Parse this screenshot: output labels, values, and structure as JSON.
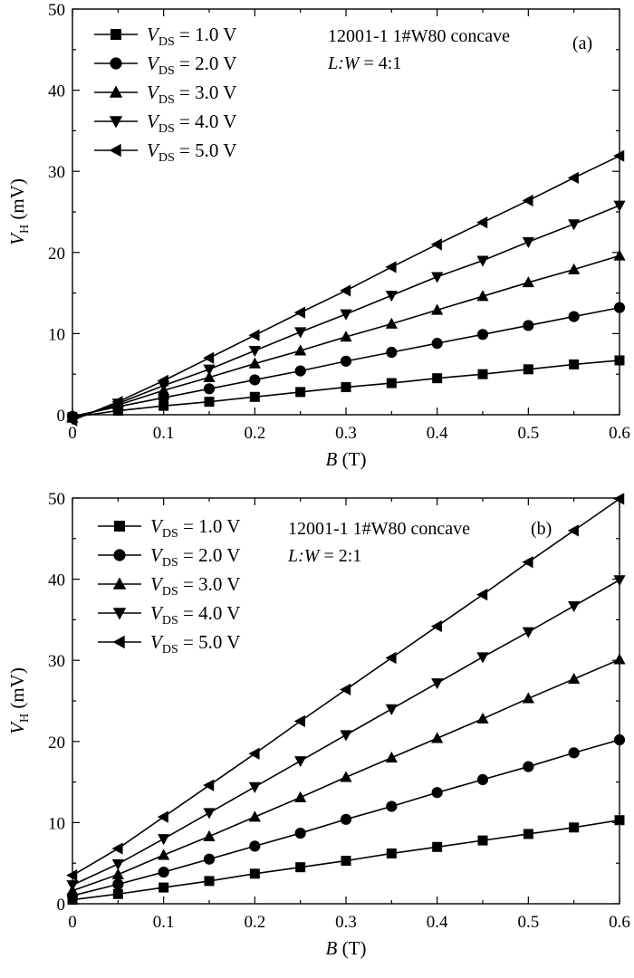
{
  "chart_data": [
    {
      "type": "line",
      "panel_label": "(a)",
      "annotation_sample": "12001-1 1#W80 concave",
      "annotation_ratio_var": "L:W",
      "annotation_ratio_value": "= 4:1",
      "xlabel_var": "B",
      "xlabel_unit": "(T)",
      "ylabel_var": "V",
      "ylabel_sub": "H",
      "ylabel_unit": "(mV)",
      "xlim": [
        0,
        0.6
      ],
      "ylim": [
        0,
        50
      ],
      "xticks": [
        0,
        0.1,
        0.2,
        0.3,
        0.4,
        0.5,
        0.6
      ],
      "xtick_labels": [
        "0",
        "0.1",
        "0.2",
        "0.3",
        "0.4",
        "0.5",
        "0.6"
      ],
      "yticks": [
        0,
        10,
        20,
        30,
        40,
        50
      ],
      "ytick_labels": [
        "0",
        "10",
        "20",
        "30",
        "40",
        "50"
      ],
      "legend_position": "top-left",
      "grid": false,
      "x": [
        0,
        0.05,
        0.1,
        0.15,
        0.2,
        0.25,
        0.3,
        0.35,
        0.4,
        0.45,
        0.5,
        0.55,
        0.6
      ],
      "series": [
        {
          "label_var": "V",
          "label_sub": "DS",
          "label_value": "= 1.0 V",
          "marker": "square",
          "values": [
            -0.3,
            0.5,
            1.1,
            1.6,
            2.2,
            2.8,
            3.4,
            3.9,
            4.5,
            5.0,
            5.6,
            6.2,
            6.7
          ]
        },
        {
          "label_var": "V",
          "label_sub": "DS",
          "label_value": "= 2.0 V",
          "marker": "circle",
          "values": [
            -0.2,
            1.0,
            2.1,
            3.2,
            4.3,
            5.4,
            6.6,
            7.7,
            8.8,
            9.9,
            11.0,
            12.1,
            13.2
          ]
        },
        {
          "label_var": "V",
          "label_sub": "DS",
          "label_value": "= 3.0 V",
          "marker": "triangle-up",
          "values": [
            -0.4,
            1.2,
            3.0,
            4.6,
            6.3,
            7.9,
            9.6,
            11.2,
            12.9,
            14.6,
            16.3,
            17.9,
            19.6
          ]
        },
        {
          "label_var": "V",
          "label_sub": "DS",
          "label_value": "= 4.0 V",
          "marker": "triangle-down",
          "values": [
            -0.5,
            1.4,
            3.6,
            5.6,
            7.9,
            10.2,
            12.4,
            14.7,
            17.0,
            19.0,
            21.3,
            23.5,
            25.8
          ]
        },
        {
          "label_var": "V",
          "label_sub": "DS",
          "label_value": "= 5.0 V",
          "marker": "triangle-left",
          "values": [
            -0.7,
            1.6,
            4.2,
            7.0,
            9.8,
            12.6,
            15.3,
            18.2,
            21.0,
            23.7,
            26.4,
            29.2,
            31.9
          ]
        }
      ]
    },
    {
      "type": "line",
      "panel_label": "(b)",
      "annotation_sample": "12001-1 1#W80 concave",
      "annotation_ratio_var": "L:W",
      "annotation_ratio_value": "= 2:1",
      "xlabel_var": "B",
      "xlabel_unit": "(T)",
      "ylabel_var": "V",
      "ylabel_sub": "H",
      "ylabel_unit": "(mV)",
      "xlim": [
        0,
        0.6
      ],
      "ylim": [
        0,
        50
      ],
      "xticks": [
        0,
        0.1,
        0.2,
        0.3,
        0.4,
        0.5,
        0.6
      ],
      "xtick_labels": [
        "0",
        "0.1",
        "0.2",
        "0.3",
        "0.4",
        "0.5",
        "0.6"
      ],
      "yticks": [
        0,
        10,
        20,
        30,
        40,
        50
      ],
      "ytick_labels": [
        "0",
        "10",
        "20",
        "30",
        "40",
        "50"
      ],
      "legend_position": "top-left",
      "grid": false,
      "x": [
        0,
        0.05,
        0.1,
        0.15,
        0.2,
        0.25,
        0.3,
        0.35,
        0.4,
        0.45,
        0.5,
        0.55,
        0.6
      ],
      "series": [
        {
          "label_var": "V",
          "label_sub": "DS",
          "label_value": "= 1.0 V",
          "marker": "square",
          "values": [
            0.5,
            1.2,
            2.0,
            2.8,
            3.7,
            4.5,
            5.3,
            6.2,
            7.0,
            7.8,
            8.6,
            9.4,
            10.3
          ]
        },
        {
          "label_var": "V",
          "label_sub": "DS",
          "label_value": "= 2.0 V",
          "marker": "circle",
          "values": [
            1.0,
            2.4,
            3.9,
            5.5,
            7.1,
            8.7,
            10.4,
            12.0,
            13.7,
            15.3,
            16.9,
            18.6,
            20.2
          ]
        },
        {
          "label_var": "V",
          "label_sub": "DS",
          "label_value": "= 3.0 V",
          "marker": "triangle-up",
          "values": [
            1.6,
            3.6,
            6.0,
            8.3,
            10.7,
            13.1,
            15.6,
            18.0,
            20.4,
            22.8,
            25.3,
            27.7,
            30.1
          ]
        },
        {
          "label_var": "V",
          "label_sub": "DS",
          "label_value": "= 4.0 V",
          "marker": "triangle-down",
          "values": [
            2.3,
            4.9,
            8.0,
            11.2,
            14.4,
            17.6,
            20.8,
            24.0,
            27.2,
            30.4,
            33.5,
            36.7,
            39.9
          ]
        },
        {
          "label_var": "V",
          "label_sub": "DS",
          "label_value": "= 5.0 V",
          "marker": "triangle-left",
          "values": [
            3.5,
            6.8,
            10.7,
            14.6,
            18.5,
            22.5,
            26.4,
            30.3,
            34.2,
            38.1,
            42.1,
            46.0,
            49.9
          ]
        }
      ]
    }
  ]
}
